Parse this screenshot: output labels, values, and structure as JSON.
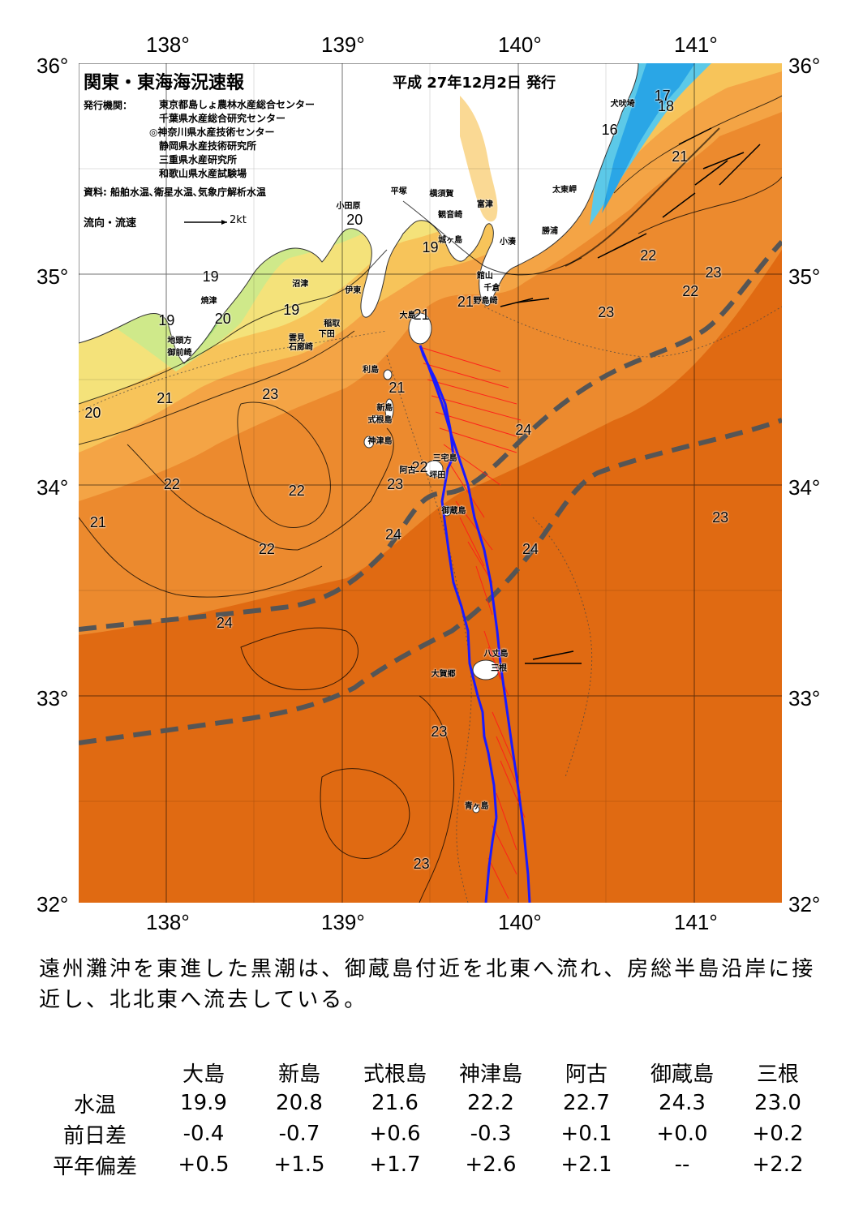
{
  "map": {
    "title": "関東・東海海況速報",
    "issue_date": "平成 27年12月2日 発行",
    "agency_label": "発行機関：",
    "agencies": [
      "東京都島しょ農林水産総合センター",
      "千葉県水産総合研究センター",
      "◎神奈川県水産技術センター",
      "静岡県水産技術研究所",
      "三重県水産研究所",
      "和歌山県水産試験場"
    ],
    "source": "資料: 船舶水温､衛星水温､気象庁解析水温",
    "legend_label": "流向・流速",
    "legend_unit": "2kt",
    "lon_labels": [
      "138°",
      "139°",
      "140°",
      "141°"
    ],
    "lat_labels": [
      "36°",
      "35°",
      "34°",
      "33°",
      "32°"
    ],
    "sst_labels": [
      {
        "t": "17",
        "lon": 140.82,
        "lat": 35.84
      },
      {
        "t": "18",
        "lon": 140.84,
        "lat": 35.79
      },
      {
        "t": "16",
        "lon": 140.52,
        "lat": 35.68
      },
      {
        "t": "21",
        "lon": 140.92,
        "lat": 35.55
      },
      {
        "t": "22",
        "lon": 140.74,
        "lat": 35.08
      },
      {
        "t": "23",
        "lon": 141.11,
        "lat": 35.0
      },
      {
        "t": "22",
        "lon": 140.98,
        "lat": 34.91
      },
      {
        "t": "23",
        "lon": 140.5,
        "lat": 34.81
      },
      {
        "t": "20",
        "lon": 139.07,
        "lat": 35.25
      },
      {
        "t": "19",
        "lon": 139.5,
        "lat": 35.12
      },
      {
        "t": "21",
        "lon": 139.7,
        "lat": 34.86
      },
      {
        "t": "21",
        "lon": 139.45,
        "lat": 34.8
      },
      {
        "t": "19",
        "lon": 138.25,
        "lat": 34.98
      },
      {
        "t": "19",
        "lon": 138.71,
        "lat": 34.82
      },
      {
        "t": "20",
        "lon": 138.32,
        "lat": 34.78
      },
      {
        "t": "19",
        "lon": 138.0,
        "lat": 34.77
      },
      {
        "t": "21",
        "lon": 139.31,
        "lat": 34.45
      },
      {
        "t": "21",
        "lon": 137.99,
        "lat": 34.4
      },
      {
        "t": "23",
        "lon": 138.59,
        "lat": 34.42
      },
      {
        "t": "20",
        "lon": 137.58,
        "lat": 34.33
      },
      {
        "t": "24",
        "lon": 140.03,
        "lat": 34.25
      },
      {
        "t": "22",
        "lon": 139.44,
        "lat": 34.07
      },
      {
        "t": "23",
        "lon": 139.3,
        "lat": 33.99
      },
      {
        "t": "22",
        "lon": 138.03,
        "lat": 33.99
      },
      {
        "t": "22",
        "lon": 138.74,
        "lat": 33.96
      },
      {
        "t": "23",
        "lon": 141.15,
        "lat": 33.83
      },
      {
        "t": "21",
        "lon": 137.61,
        "lat": 33.81
      },
      {
        "t": "24",
        "lon": 139.29,
        "lat": 33.75
      },
      {
        "t": "24",
        "lon": 140.07,
        "lat": 33.68
      },
      {
        "t": "22",
        "lon": 138.57,
        "lat": 33.68
      },
      {
        "t": "24",
        "lon": 138.33,
        "lat": 33.33
      },
      {
        "t": "23",
        "lon": 139.55,
        "lat": 32.81
      },
      {
        "t": "23",
        "lon": 139.45,
        "lat": 32.18
      }
    ],
    "place_names": [
      {
        "t": "犬吠埼",
        "lon": 140.58,
        "lat": 35.82
      },
      {
        "t": "太東岬",
        "lon": 140.25,
        "lat": 35.41
      },
      {
        "t": "勝浦",
        "lon": 140.19,
        "lat": 35.21
      },
      {
        "t": "小湊",
        "lon": 139.95,
        "lat": 35.16
      },
      {
        "t": "富津",
        "lon": 139.82,
        "lat": 35.34
      },
      {
        "t": "横須賀",
        "lon": 139.55,
        "lat": 35.39
      },
      {
        "t": "平塚",
        "lon": 139.33,
        "lat": 35.4
      },
      {
        "t": "観音崎",
        "lon": 139.6,
        "lat": 35.29
      },
      {
        "t": "小田原",
        "lon": 139.02,
        "lat": 35.33
      },
      {
        "t": "城ヶ島",
        "lon": 139.6,
        "lat": 35.17
      },
      {
        "t": "館山",
        "lon": 139.82,
        "lat": 35.0
      },
      {
        "t": "千倉",
        "lon": 139.86,
        "lat": 34.94
      },
      {
        "t": "野島崎",
        "lon": 139.8,
        "lat": 34.88
      },
      {
        "t": "沼津",
        "lon": 138.77,
        "lat": 34.96
      },
      {
        "t": "伊東",
        "lon": 139.07,
        "lat": 34.93
      },
      {
        "t": "焼津",
        "lon": 138.25,
        "lat": 34.88
      },
      {
        "t": "稲取",
        "lon": 138.95,
        "lat": 34.77
      },
      {
        "t": "下田",
        "lon": 138.92,
        "lat": 34.72
      },
      {
        "t": "雲見",
        "lon": 138.75,
        "lat": 34.7
      },
      {
        "t": "石廊崎",
        "lon": 138.75,
        "lat": 34.66
      },
      {
        "t": "地頭方",
        "lon": 138.06,
        "lat": 34.69
      },
      {
        "t": "御前崎",
        "lon": 138.06,
        "lat": 34.63
      },
      {
        "t": "大島",
        "lon": 139.38,
        "lat": 34.81
      },
      {
        "t": "利島",
        "lon": 139.17,
        "lat": 34.55
      },
      {
        "t": "新島",
        "lon": 139.25,
        "lat": 34.37
      },
      {
        "t": "式根島",
        "lon": 139.2,
        "lat": 34.31
      },
      {
        "t": "神津島",
        "lon": 139.2,
        "lat": 34.21
      },
      {
        "t": "阿古",
        "lon": 139.38,
        "lat": 34.07
      },
      {
        "t": "三宅島",
        "lon": 139.57,
        "lat": 34.13
      },
      {
        "t": "坪田",
        "lon": 139.55,
        "lat": 34.05
      },
      {
        "t": "御蔵島",
        "lon": 139.62,
        "lat": 33.88
      },
      {
        "t": "八丈島",
        "lon": 139.86,
        "lat": 33.2
      },
      {
        "t": "三根",
        "lon": 139.9,
        "lat": 33.13
      },
      {
        "t": "大賀郷",
        "lon": 139.56,
        "lat": 33.1
      },
      {
        "t": "青ヶ島",
        "lon": 139.75,
        "lat": 32.47
      }
    ]
  },
  "comment": "遠州灘沖を東進した黒潮は、御蔵島付近を北東へ流れ、房総半島沿岸に接近し、北北東へ流去している。",
  "obs_table": {
    "stations": [
      "大島",
      "新島",
      "式根島",
      "神津島",
      "阿古",
      "御蔵島",
      "三根"
    ],
    "rows": [
      {
        "label": "水温",
        "values": [
          "19.9",
          "20.8",
          "21.6",
          "22.2",
          "22.7",
          "24.3",
          "23.0"
        ]
      },
      {
        "label": "前日差",
        "values": [
          "-0.4",
          "-0.7",
          "+0.6",
          "-0.3",
          "+0.1",
          "+0.0",
          "+0.2"
        ]
      },
      {
        "label": "平年偏差",
        "values": [
          "+0.5",
          "+1.5",
          "+1.7",
          "+2.6",
          "+2.1",
          "--",
          "+2.2"
        ]
      }
    ]
  },
  "colors": {
    "sea_deep_orange": "#e06a12",
    "sea_orange": "#ec8a2e",
    "sea_light_orange": "#f4a445",
    "sea_yellow_orange": "#f7c45a",
    "sea_yellow": "#f4e27a",
    "sea_light_green": "#cfe98a",
    "sea_green": "#9ddb72",
    "sea_cyan": "#5cc9e8",
    "sea_blue": "#2aa6e6",
    "land": "#ffffff",
    "kuroshio_axis": "#1a1aff",
    "adcp_vectors": "#ff1a1a",
    "kuroshio_bounds": "#555555"
  }
}
